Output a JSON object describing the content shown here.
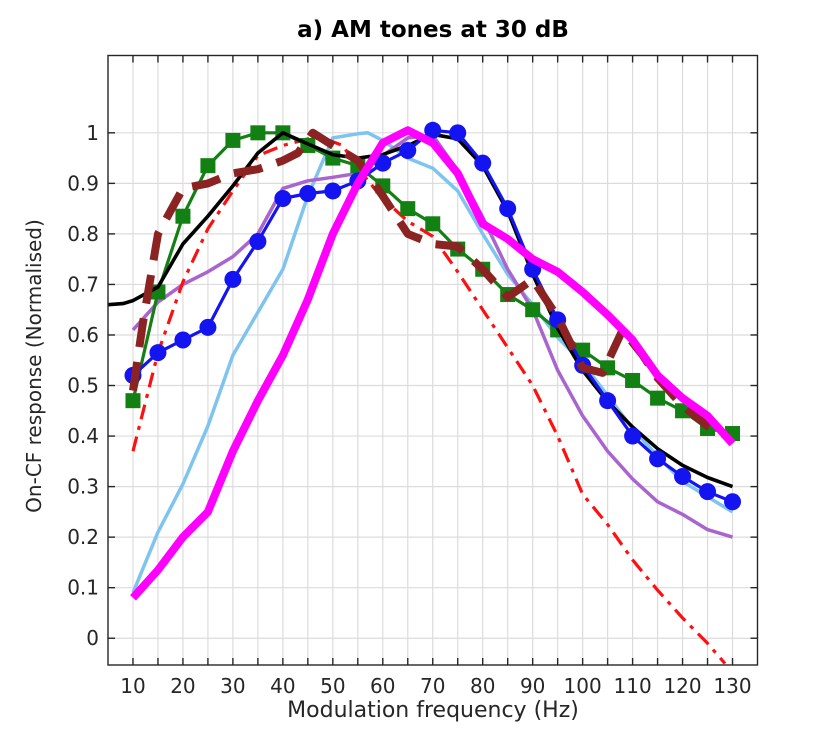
{
  "chart_data": {
    "type": "line",
    "title": "a) AM tones at 30 dB",
    "xlabel": "Modulation frequency (Hz)",
    "ylabel": "On-CF response (Normalised)",
    "xlim": [
      5,
      135
    ],
    "ylim": [
      -0.053,
      1.153
    ],
    "grid": true,
    "grid_color": "#dcdcdc",
    "axis_color": "#262626",
    "xticks": {
      "grid_values": [
        10,
        15,
        20,
        25,
        30,
        35,
        40,
        45,
        50,
        55,
        60,
        65,
        70,
        75,
        80,
        85,
        90,
        95,
        100,
        105,
        110,
        115,
        120,
        125,
        130
      ],
      "labeled_values": [
        10,
        20,
        30,
        40,
        50,
        60,
        70,
        80,
        90,
        100,
        110,
        120,
        130
      ],
      "labels": [
        "10",
        "20",
        "30",
        "40",
        "50",
        "60",
        "70",
        "80",
        "90",
        "100",
        "110",
        "120",
        "130"
      ]
    },
    "yticks": {
      "grid_values": [
        0,
        0.1,
        0.2,
        0.3,
        0.4,
        0.5,
        0.6,
        0.7,
        0.8,
        0.9,
        1.0
      ],
      "labels": [
        "0",
        "0.1",
        "0.2",
        "0.3",
        "0.4",
        "0.5",
        "0.6",
        "0.7",
        "0.8",
        "0.9",
        "1"
      ]
    },
    "series": [
      {
        "name": "sky-blue-line",
        "color": "#7FC4EE",
        "width": 3.5,
        "marker": "none",
        "dash": "solid",
        "x": [
          10,
          15,
          20,
          25,
          30,
          35,
          40,
          45,
          50,
          55,
          57,
          60,
          65,
          70,
          75,
          80,
          85,
          90,
          95,
          100,
          105,
          110,
          115,
          120,
          125,
          130
        ],
        "y": [
          0.09,
          0.21,
          0.305,
          0.42,
          0.56,
          0.645,
          0.73,
          0.875,
          0.99,
          0.998,
          1.0,
          0.985,
          0.95,
          0.93,
          0.885,
          0.8,
          0.72,
          0.66,
          0.595,
          0.545,
          0.48,
          0.415,
          0.36,
          0.31,
          0.28,
          0.25
        ]
      },
      {
        "name": "purple-line",
        "color": "#A964CE",
        "width": 3.5,
        "marker": "none",
        "dash": "solid",
        "x": [
          10,
          15,
          20,
          25,
          30,
          35,
          40,
          45,
          50,
          55,
          60,
          65,
          70,
          75,
          80,
          85,
          90,
          95,
          100,
          105,
          110,
          115,
          120,
          125,
          130
        ],
        "y": [
          0.61,
          0.665,
          0.7,
          0.725,
          0.755,
          0.8,
          0.89,
          0.905,
          0.912,
          0.92,
          0.955,
          0.99,
          0.995,
          0.925,
          0.833,
          0.73,
          0.65,
          0.53,
          0.44,
          0.37,
          0.315,
          0.27,
          0.245,
          0.215,
          0.2
        ]
      },
      {
        "name": "red-dash-dot-line",
        "color": "#FF1010",
        "width": 3.2,
        "marker": "none",
        "dash": "dashdot",
        "x": [
          10,
          15,
          20,
          25,
          30,
          35,
          40,
          45,
          48,
          52,
          55,
          60,
          65,
          70,
          75,
          80,
          85,
          90,
          95,
          100,
          105,
          110,
          115,
          120,
          125,
          128.5
        ],
        "y": [
          0.37,
          0.565,
          0.705,
          0.81,
          0.885,
          0.955,
          0.975,
          0.988,
          0.99,
          0.975,
          0.93,
          0.87,
          0.825,
          0.795,
          0.725,
          0.65,
          0.575,
          0.5,
          0.4,
          0.285,
          0.225,
          0.155,
          0.095,
          0.04,
          -0.01,
          -0.05
        ]
      },
      {
        "name": "green-square-line",
        "color": "#128012",
        "width": 3.2,
        "marker": "square",
        "marker_size": 15,
        "dash": "solid",
        "x": [
          10,
          15,
          20,
          25,
          30,
          35,
          40,
          45,
          50,
          55,
          60,
          65,
          70,
          75,
          80,
          85,
          90,
          95,
          100,
          105,
          110,
          115,
          120,
          125,
          130
        ],
        "y": [
          0.47,
          0.685,
          0.835,
          0.935,
          0.985,
          1.0,
          1.0,
          0.975,
          0.95,
          0.935,
          0.895,
          0.85,
          0.82,
          0.77,
          0.73,
          0.68,
          0.65,
          0.61,
          0.57,
          0.535,
          0.51,
          0.475,
          0.45,
          0.415,
          0.405
        ]
      },
      {
        "name": "black-line",
        "color": "#000000",
        "width": 3.6,
        "marker": "none",
        "dash": "solid",
        "x": [
          5,
          8,
          10,
          15,
          20,
          25,
          30,
          35,
          40,
          45,
          50,
          55,
          60,
          65,
          70,
          75,
          80,
          85,
          90,
          95,
          100,
          105,
          110,
          115,
          120,
          125,
          130
        ],
        "y": [
          0.66,
          0.662,
          0.668,
          0.695,
          0.78,
          0.835,
          0.895,
          0.96,
          1.0,
          0.978,
          0.957,
          0.95,
          0.957,
          0.975,
          0.997,
          0.988,
          0.935,
          0.845,
          0.72,
          0.613,
          0.53,
          0.468,
          0.418,
          0.375,
          0.342,
          0.318,
          0.3
        ]
      },
      {
        "name": "blue-circle-line",
        "color": "#1414F0",
        "width": 3.2,
        "marker": "circle",
        "marker_size": 17,
        "dash": "solid",
        "x": [
          10,
          15,
          20,
          25,
          30,
          35,
          40,
          45,
          50,
          55,
          60,
          65,
          70,
          75,
          80,
          85,
          90,
          95,
          100,
          105,
          110,
          115,
          120,
          125,
          130
        ],
        "y": [
          0.52,
          0.565,
          0.59,
          0.615,
          0.71,
          0.785,
          0.87,
          0.88,
          0.885,
          0.905,
          0.94,
          0.965,
          1.005,
          1.0,
          0.94,
          0.85,
          0.73,
          0.63,
          0.54,
          0.47,
          0.4,
          0.355,
          0.32,
          0.29,
          0.27
        ]
      },
      {
        "name": "dark-red-dashed-line",
        "color": "#8B2323",
        "width": 8,
        "marker": "none",
        "dash": "dashed",
        "x": [
          10,
          12,
          15,
          20,
          25,
          30,
          35,
          40,
          43,
          46,
          50,
          55,
          60,
          65,
          70,
          75,
          80,
          85,
          90,
          95,
          100,
          104,
          108,
          112,
          115,
          120,
          125,
          129
        ],
        "y": [
          0.49,
          0.625,
          0.8,
          0.89,
          0.9,
          0.92,
          0.928,
          0.945,
          0.96,
          1.0,
          0.975,
          0.945,
          0.875,
          0.8,
          0.78,
          0.775,
          0.73,
          0.675,
          0.71,
          0.635,
          0.535,
          0.525,
          0.61,
          0.56,
          0.515,
          0.46,
          0.42,
          0.4
        ]
      },
      {
        "name": "magenta-line",
        "color": "#FF00FF",
        "width": 8,
        "marker": "none",
        "dash": "solid",
        "x": [
          10,
          15,
          20,
          25,
          30,
          35,
          40,
          45,
          50,
          55,
          60,
          65,
          70,
          75,
          80,
          85,
          90,
          95,
          100,
          105,
          110,
          115,
          120,
          125,
          130
        ],
        "y": [
          0.08,
          0.135,
          0.2,
          0.25,
          0.37,
          0.47,
          0.56,
          0.67,
          0.8,
          0.9,
          0.98,
          1.005,
          0.98,
          0.92,
          0.82,
          0.79,
          0.75,
          0.725,
          0.685,
          0.64,
          0.59,
          0.52,
          0.475,
          0.44,
          0.385
        ]
      }
    ]
  }
}
